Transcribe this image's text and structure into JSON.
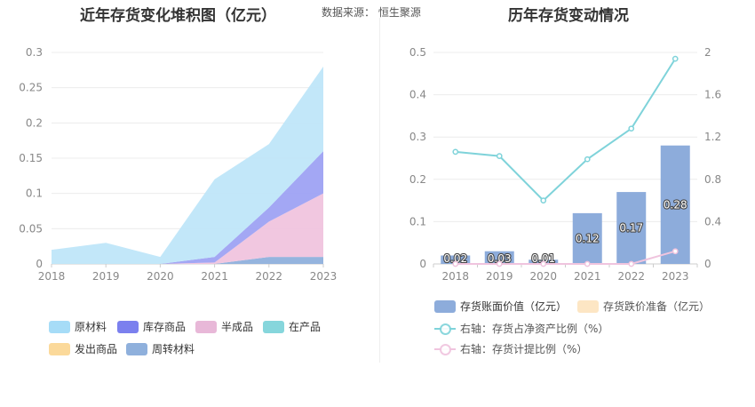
{
  "header": {
    "left_title": "近年存货变化堆积图（亿元）",
    "right_title": "历年存货变动情况",
    "source": "数据来源：  恒生聚源"
  },
  "chart_data": [
    {
      "type": "area",
      "stacked": true,
      "title": "近年存货变化堆积图（亿元）",
      "x": [
        "2018",
        "2019",
        "2020",
        "2021",
        "2022",
        "2023"
      ],
      "ylim": [
        0,
        0.3
      ],
      "yticks": [
        "0",
        "0.05",
        "0.1",
        "0.15",
        "0.2",
        "0.25",
        "0.3"
      ],
      "grid": true,
      "legend_position": "bottom",
      "series": [
        {
          "name": "周转材料",
          "color": "#8fb0dc",
          "values": [
            0,
            0,
            0,
            0,
            0.01,
            0.01
          ]
        },
        {
          "name": "发出商品",
          "color": "#fbd99a",
          "values": [
            0,
            0,
            0,
            0,
            0,
            0
          ]
        },
        {
          "name": "在产品",
          "color": "#86d6dc",
          "values": [
            0,
            0,
            0,
            0,
            0,
            0
          ]
        },
        {
          "name": "半成品",
          "color": "#f0c4de",
          "values": [
            0,
            0,
            0,
            0.002,
            0.05,
            0.09
          ]
        },
        {
          "name": "库存商品",
          "color": "#9ea2f3",
          "values": [
            0,
            0,
            0,
            0.008,
            0.02,
            0.06
          ]
        },
        {
          "name": "原材料",
          "color": "#bfe6f9",
          "values": [
            0.02,
            0.03,
            0.01,
            0.11,
            0.09,
            0.12
          ]
        }
      ],
      "legend": [
        {
          "name": "原材料",
          "color": "#a6dcf7"
        },
        {
          "name": "库存商品",
          "color": "#7b80ee"
        },
        {
          "name": "半成品",
          "color": "#e8b8d8"
        },
        {
          "name": "在产品",
          "color": "#86d6dc"
        },
        {
          "name": "发出商品",
          "color": "#fbd99a"
        },
        {
          "name": "周转材料",
          "color": "#8fb0dc"
        }
      ]
    },
    {
      "type": "bar",
      "title": "历年存货变动情况",
      "categories": [
        "2018",
        "2019",
        "2020",
        "2021",
        "2022",
        "2023"
      ],
      "ylim_left": [
        0,
        0.5
      ],
      "yticks_left": [
        "0",
        "0.1",
        "0.2",
        "0.3",
        "0.4",
        "0.5"
      ],
      "ylim_right": [
        0,
        2
      ],
      "yticks_right": [
        "0",
        "0.4",
        "0.8",
        "1.2",
        "1.6",
        "2"
      ],
      "grid": true,
      "legend_position": "bottom",
      "bars": [
        {
          "name": "存货账面价值（亿元）",
          "color": "#8dacdb",
          "values": [
            0.02,
            0.03,
            0.01,
            0.12,
            0.17,
            0.28
          ],
          "labels": [
            "0.02",
            "0.03",
            "0.01",
            "0.12",
            "0.17",
            "0.28"
          ]
        },
        {
          "name": "存货跌价准备（亿元）",
          "color": "#fde6c4",
          "values": [
            0,
            0,
            0,
            0,
            0,
            0
          ]
        }
      ],
      "lines": [
        {
          "name": "右轴：存货占净资产比例（%）",
          "color": "#7fd3da",
          "axis": "right",
          "values": [
            1.06,
            1.02,
            0.6,
            0.99,
            1.28,
            1.94
          ]
        },
        {
          "name": "右轴：存货计提比例（%）",
          "color": "#f0c4de",
          "axis": "right",
          "values": [
            0,
            0,
            0,
            0,
            0,
            0.12
          ]
        }
      ]
    }
  ]
}
